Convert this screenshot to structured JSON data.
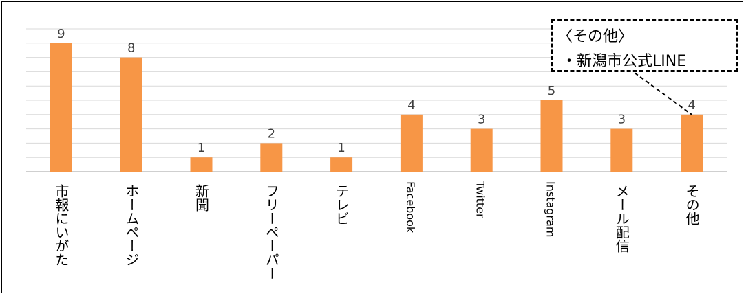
{
  "chart_data": {
    "type": "bar",
    "categories": [
      "市報にいがた",
      "ホームページ",
      "新聞",
      "フリーペーパー",
      "テレビ",
      "Facebook",
      "Twitter",
      "Instagram",
      "メール配信",
      "その他"
    ],
    "values": [
      9,
      8,
      1,
      2,
      1,
      4,
      3,
      5,
      3,
      4
    ],
    "title": "",
    "xlabel": "",
    "ylabel": "",
    "ylim": [
      0,
      10
    ],
    "grid": true,
    "legend": "none",
    "bar_color": "#F79646",
    "grid_color": "#D9D9D9",
    "annotations": [
      {
        "title": "〈その他〉",
        "items": [
          "・新潟市公式LINE"
        ],
        "target_category": "その他"
      }
    ]
  }
}
